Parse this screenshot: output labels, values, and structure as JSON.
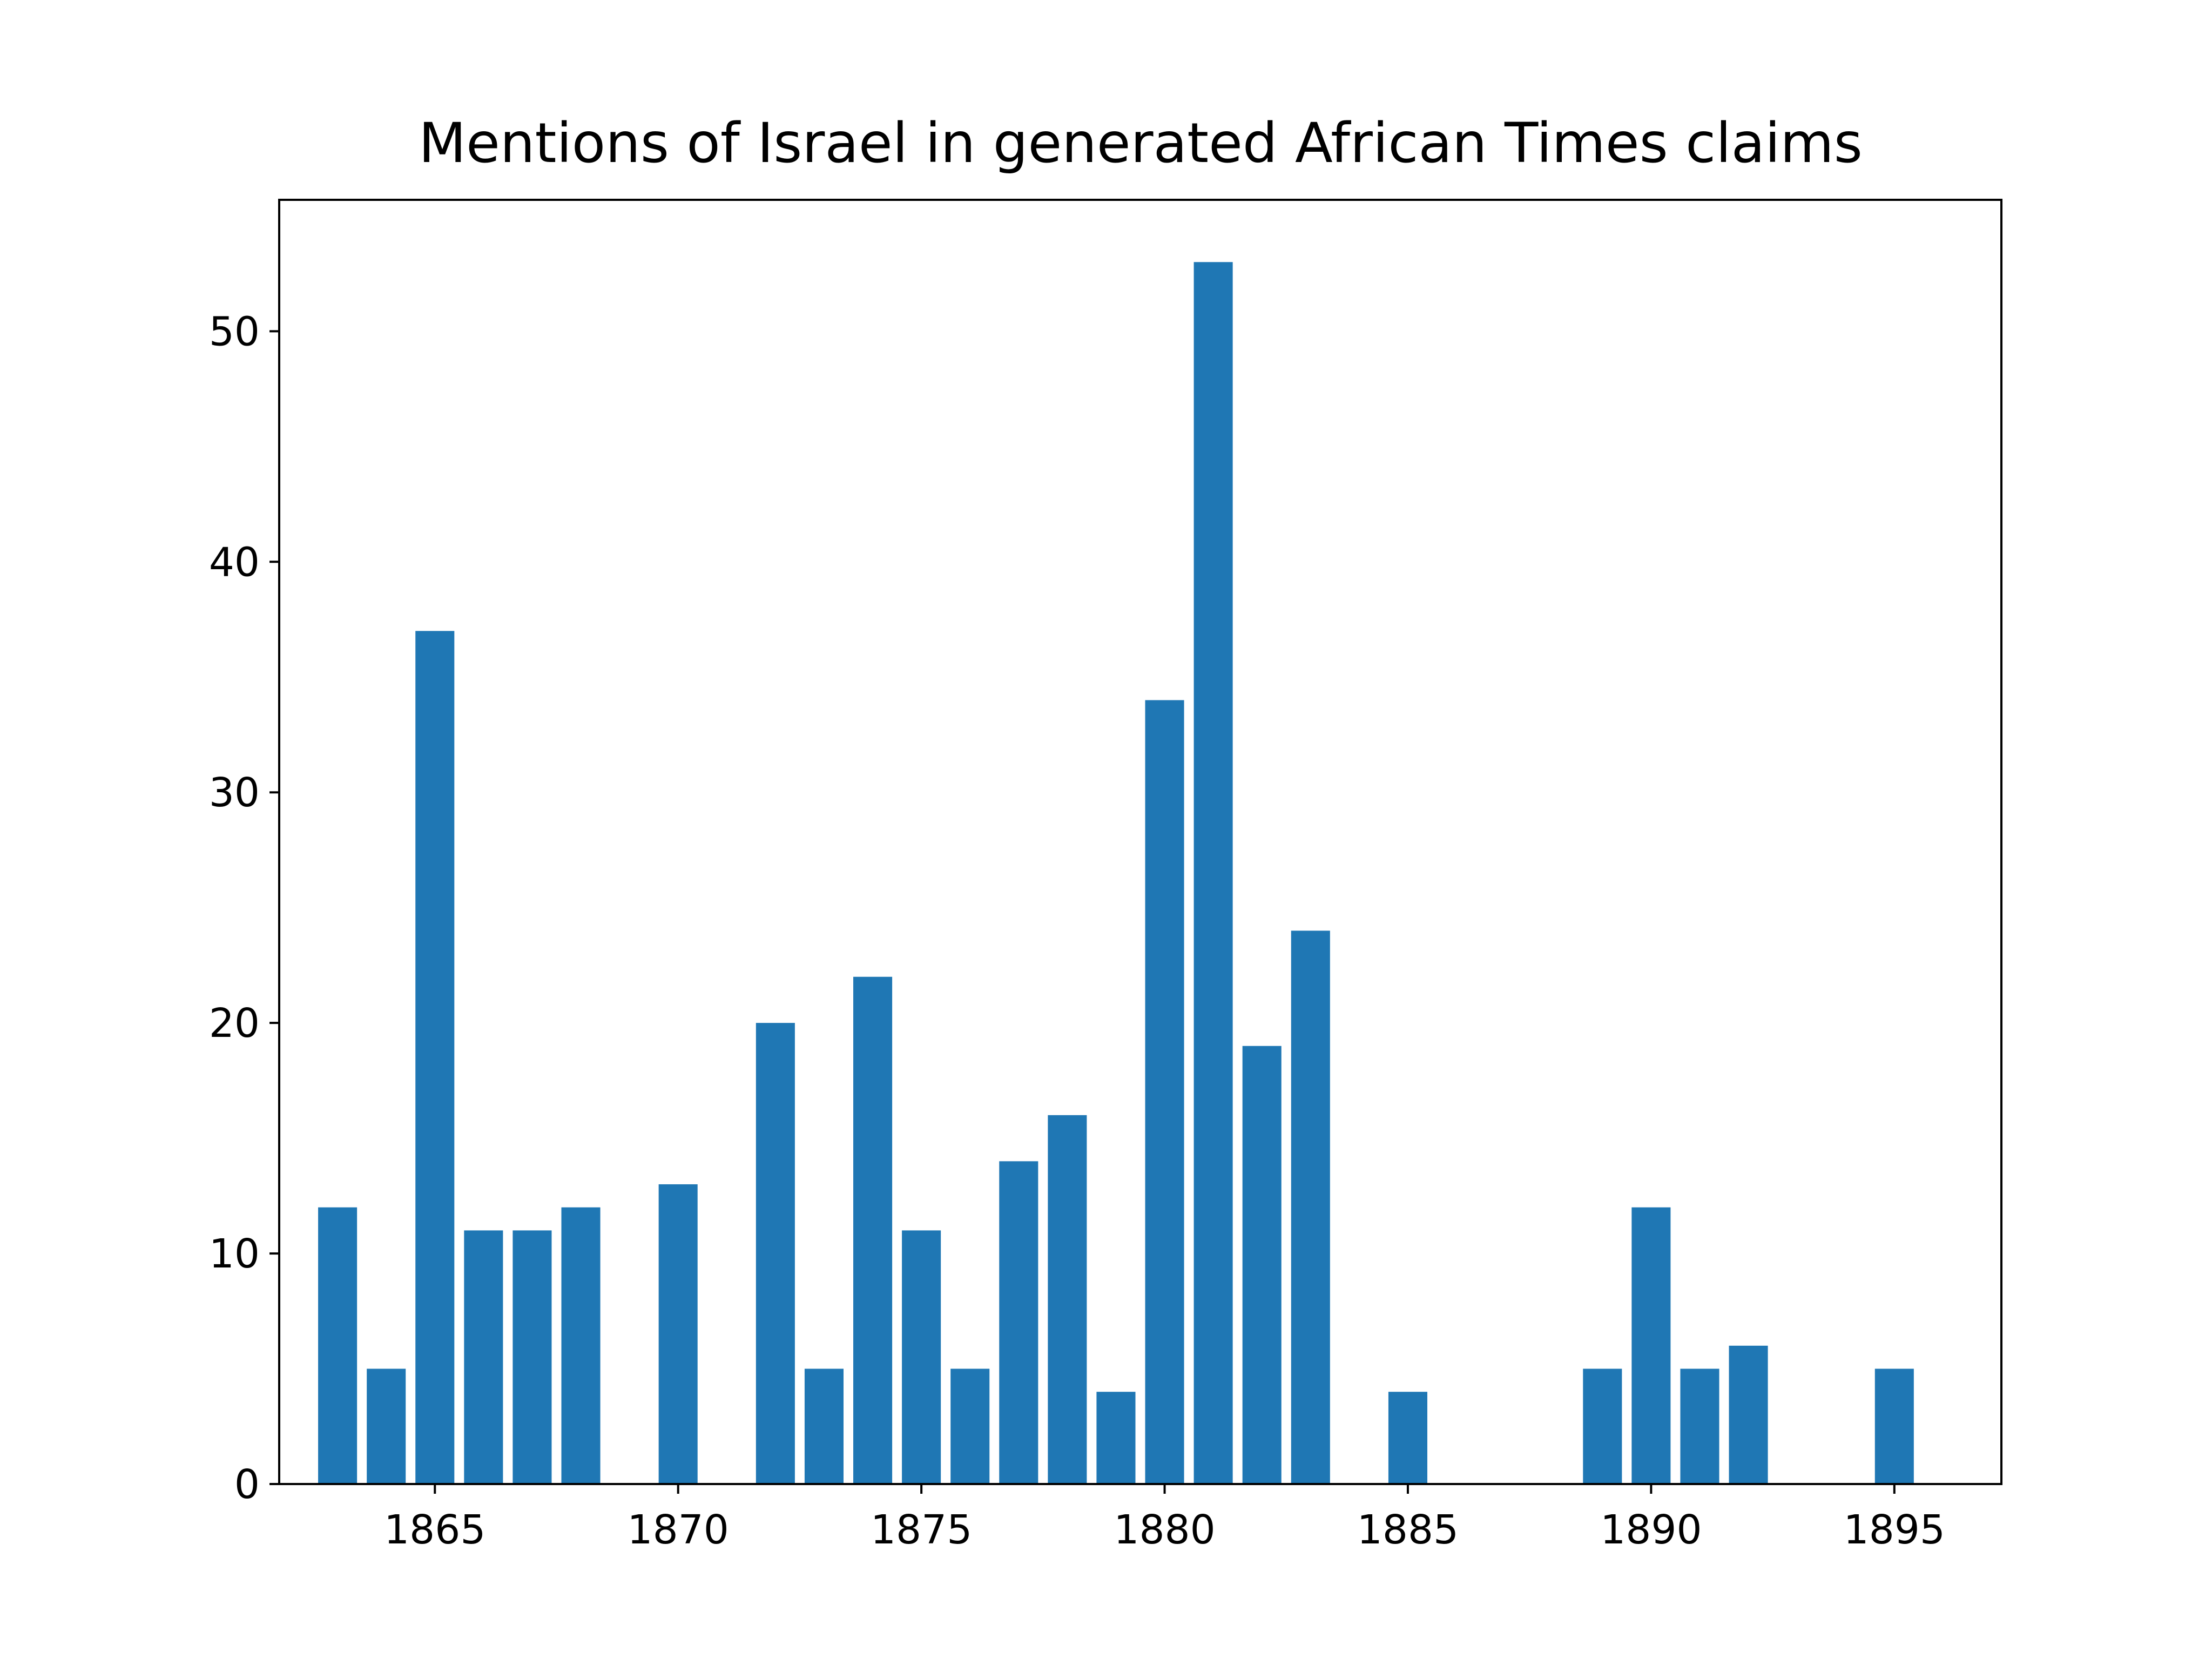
{
  "chart_data": {
    "type": "bar",
    "title": "Mentions of Israel in generated African Times claims",
    "xlabel": "",
    "ylabel": "",
    "x": [
      1863,
      1864,
      1865,
      1866,
      1867,
      1868,
      1870,
      1872,
      1873,
      1874,
      1875,
      1876,
      1877,
      1878,
      1879,
      1880,
      1881,
      1882,
      1883,
      1885,
      1889,
      1890,
      1891,
      1892,
      1895
    ],
    "values": [
      12,
      5,
      37,
      11,
      11,
      12,
      13,
      20,
      5,
      22,
      11,
      5,
      14,
      16,
      4,
      34,
      53,
      19,
      24,
      4,
      5,
      12,
      5,
      6,
      5
    ],
    "xlim": [
      1861.8,
      1897.2
    ],
    "ylim": [
      0,
      55.7
    ],
    "xticks": [
      1865,
      1870,
      1875,
      1880,
      1885,
      1890,
      1895
    ],
    "yticks": [
      0,
      10,
      20,
      30,
      40,
      50
    ],
    "bar_color": "#1f77b4",
    "grid": false,
    "legend": "none"
  }
}
